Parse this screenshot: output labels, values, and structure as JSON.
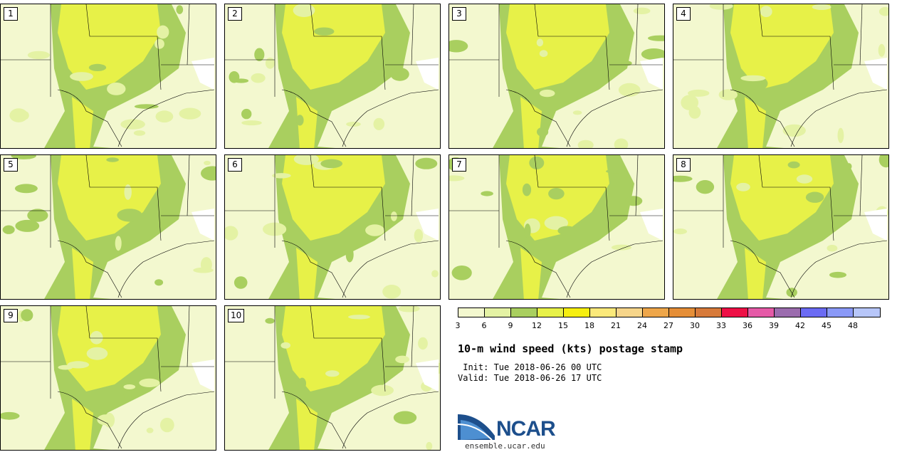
{
  "panels": [
    "1",
    "2",
    "3",
    "4",
    "5",
    "6",
    "7",
    "8",
    "9",
    "10"
  ],
  "legend": {
    "colors": [
      "#f3f8cf",
      "#e4f2a4",
      "#a9cf5f",
      "#e7f148",
      "#f6ef10",
      "#fbe97a",
      "#f6d58a",
      "#eea64a",
      "#e58e37",
      "#d77a3a",
      "#ee1046",
      "#e55aa7",
      "#9b6cae",
      "#6b6bf3",
      "#8a99f7",
      "#b7c6f9"
    ],
    "ticks": [
      "3",
      "6",
      "9",
      "12",
      "15",
      "18",
      "21",
      "24",
      "27",
      "30",
      "33",
      "36",
      "39",
      "42",
      "45",
      "48"
    ]
  },
  "title": "10-m wind speed (kts) postage stamp",
  "init": " Init: Tue 2018-06-26 00 UTC",
  "valid": "Valid: Tue 2018-06-26 17 UTC",
  "logo": {
    "name": "NCAR",
    "url": "ensemble.ucar.edu"
  }
}
